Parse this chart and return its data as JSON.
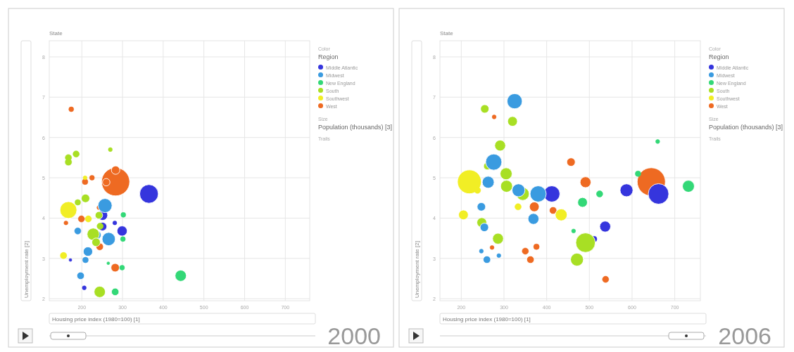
{
  "chart_data": [
    {
      "type": "bubble",
      "xlabel": "Housing price index (1980=100) [1]",
      "ylabel": "Unemployment rate [2]",
      "xlim": [
        120,
        760
      ],
      "ylim": [
        1.95,
        8.4
      ],
      "xticks": [
        200,
        300,
        400,
        500,
        600,
        700
      ],
      "yticks": [
        2,
        3,
        4,
        5,
        6,
        7,
        8
      ],
      "grid": true,
      "legend": "right",
      "marker": "circle",
      "annotations": [
        "State",
        "Color",
        "Region",
        "Size",
        "Population (thousands) [3]",
        "Trails",
        "2000"
      ],
      "series": [
        {
          "name": "Middle Atlantic",
          "color": "#3535dd",
          "x": [
            365,
            251,
            251,
            299,
            281,
            206,
            172
          ],
          "values": [
            4.6,
            4.07,
            3.79,
            3.68,
            3.88,
            2.27,
            2.96
          ],
          "sizes": [
            0.44,
            0.13,
            0.09,
            0.13,
            0.02,
            0.02,
            0.01
          ]
        },
        {
          "name": "Midwest",
          "color": "#3a9be0",
          "x": [
            257,
            266,
            237,
            190,
            215,
            209,
            197
          ],
          "values": [
            4.31,
            3.48,
            3.58,
            3.68,
            3.17,
            2.96,
            2.57
          ],
          "sizes": [
            0.25,
            0.22,
            0.09,
            0.05,
            0.11,
            0.04,
            0.07
          ]
        },
        {
          "name": "New England",
          "color": "#33d877",
          "x": [
            443,
            282,
            302,
            301,
            299,
            265
          ],
          "values": [
            2.57,
            2.17,
            4.08,
            3.48,
            2.77,
            2.88
          ],
          "sizes": [
            0.16,
            0.07,
            0.03,
            0.03,
            0.03,
            0.01
          ]
        },
        {
          "name": "South",
          "color": "#a8df24",
          "x": [
            167,
            186,
            167,
            270,
            209,
            190,
            242,
            245,
            228,
            235,
            244
          ],
          "values": [
            5.39,
            5.59,
            5.5,
            5.7,
            4.49,
            4.39,
            4.07,
            3.8,
            3.6,
            3.4,
            2.17
          ],
          "sizes": [
            0.07,
            0.05,
            0.05,
            0.02,
            0.09,
            0.04,
            0.07,
            0.05,
            0.19,
            0.09,
            0.16
          ]
        },
        {
          "name": "Southwest",
          "color": "#f1ee25",
          "x": [
            167,
            155,
            208,
            216
          ],
          "values": [
            4.2,
            3.07,
            5.0,
            3.98
          ],
          "sizes": [
            0.36,
            0.07,
            0.02,
            0.05
          ]
        },
        {
          "name": "West",
          "color": "#ee6a22",
          "x": [
            174,
            283,
            283,
            260,
            208,
            225,
            199,
            244,
            282,
            242,
            161
          ],
          "values": [
            6.7,
            4.9,
            5.19,
            4.89,
            4.9,
            5.0,
            3.98,
            3.29,
            2.77,
            4.26,
            3.88
          ],
          "sizes": [
            0.03,
            1,
            0.09,
            0.07,
            0.04,
            0.03,
            0.05,
            0.07,
            0.09,
            0.02,
            0.02
          ]
        }
      ]
    },
    {
      "type": "bubble",
      "xlabel": "Housing price index (1980=100) [1]",
      "ylabel": "Unemployment rate [2]",
      "xlim": [
        150,
        760
      ],
      "ylim": [
        1.95,
        8.4
      ],
      "xticks": [
        200,
        300,
        400,
        500,
        600,
        700
      ],
      "yticks": [
        2,
        3,
        4,
        5,
        6,
        7,
        8
      ],
      "grid": true,
      "legend": "right",
      "marker": "circle",
      "annotations": [
        "State",
        "Color",
        "Region",
        "Size",
        "Population (thousands) [3]",
        "Trails",
        "2006"
      ],
      "series": [
        {
          "name": "Middle Atlantic",
          "color": "#3535dd",
          "x": [
            662,
            412,
            587,
            537,
            511
          ],
          "values": [
            4.6,
            4.6,
            4.69,
            3.79,
            3.48
          ],
          "sizes": [
            0.53,
            0.33,
            0.21,
            0.15,
            0.04
          ]
        },
        {
          "name": "Midwest",
          "color": "#3a9be0",
          "x": [
            325,
            276,
            263,
            334,
            380,
            369,
            247,
            254,
            260,
            247,
            288
          ],
          "values": [
            6.9,
            5.39,
            4.89,
            4.69,
            4.6,
            3.98,
            4.28,
            3.77,
            2.97,
            3.18,
            3.07
          ],
          "sizes": [
            0.29,
            0.33,
            0.18,
            0.21,
            0.33,
            0.15,
            0.09,
            0.09,
            0.07,
            0.02,
            0.02
          ]
        },
        {
          "name": "New England",
          "color": "#33d877",
          "x": [
            732,
            484,
            524,
            614,
            463,
            660
          ],
          "values": [
            4.79,
            4.39,
            4.6,
            5.1,
            3.68,
            5.9
          ],
          "sizes": [
            0.18,
            0.12,
            0.05,
            0.04,
            0.02,
            0.02
          ]
        },
        {
          "name": "South",
          "color": "#a8df24",
          "x": [
            255,
            320,
            291,
            261,
            305,
            306,
            344,
            248,
            286,
            491,
            471
          ],
          "values": [
            6.71,
            6.4,
            5.8,
            5.29,
            5.1,
            4.79,
            4.6,
            3.89,
            3.49,
            3.39,
            2.97
          ],
          "sizes": [
            0.09,
            0.12,
            0.15,
            0.07,
            0.18,
            0.18,
            0.21,
            0.12,
            0.15,
            0.48,
            0.21
          ]
        },
        {
          "name": "Southwest",
          "color": "#f1ee25",
          "x": [
            219,
            238,
            205,
            333,
            434
          ],
          "values": [
            4.9,
            4.69,
            4.08,
            4.28,
            4.08
          ],
          "sizes": [
            0.72,
            0.05,
            0.12,
            0.05,
            0.18
          ]
        },
        {
          "name": "West",
          "color": "#ee6a22",
          "x": [
            645,
            457,
            491,
            371,
            415,
            350,
            376,
            362,
            272,
            277,
            538
          ],
          "values": [
            4.9,
            5.39,
            4.89,
            4.28,
            4.19,
            3.18,
            3.29,
            2.97,
            3.27,
            6.51,
            2.48
          ],
          "sizes": [
            1,
            0.09,
            0.15,
            0.12,
            0.07,
            0.05,
            0.04,
            0.07,
            0.02,
            0.02,
            0.05
          ]
        }
      ]
    }
  ]
}
